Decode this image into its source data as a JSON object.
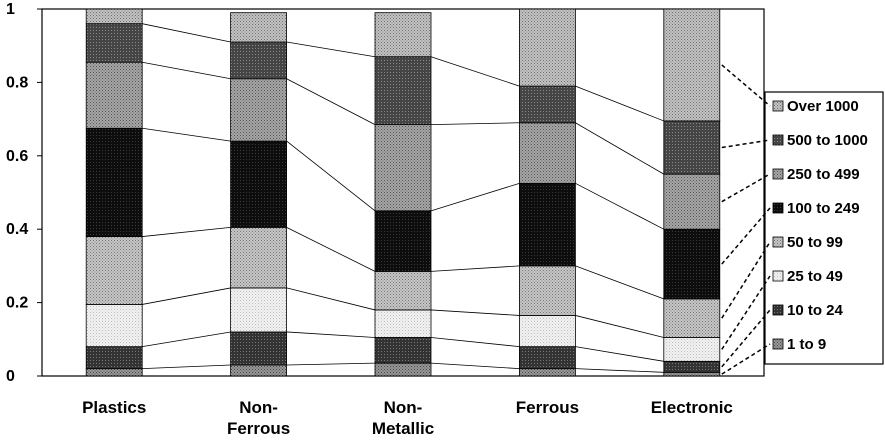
{
  "chart_data": {
    "type": "bar",
    "stacked": true,
    "categories": [
      "Plastics",
      "Non-Ferrous",
      "Non-Metallic",
      "Ferrous",
      "Electronic"
    ],
    "category_lines": [
      [
        "Plastics"
      ],
      [
        "Non-",
        "Ferrous"
      ],
      [
        "Non-",
        "Metallic"
      ],
      [
        "Ferrous"
      ],
      [
        "Electronic"
      ]
    ],
    "ylim": [
      0,
      1
    ],
    "yticks": [
      "0",
      "0.2",
      "0.4",
      "0.6",
      "0.8",
      "1"
    ],
    "grid": false,
    "legend_position": "right",
    "series_connectors": true,
    "series": [
      {
        "name": "1 to 9",
        "color": "#8c8c8c",
        "pattern": "dots-fine",
        "values": [
          0.02,
          0.03,
          0.035,
          0.02,
          0.01
        ]
      },
      {
        "name": "10 to 24",
        "color": "#3a3a3a",
        "pattern": "dots-dark",
        "values": [
          0.06,
          0.09,
          0.07,
          0.06,
          0.03
        ]
      },
      {
        "name": "25 to 49",
        "color": "#e6e6e6",
        "pattern": "dots-light",
        "values": [
          0.115,
          0.12,
          0.075,
          0.085,
          0.065
        ]
      },
      {
        "name": "50 to 99",
        "color": "#b4b4b4",
        "pattern": "dots-mid",
        "values": [
          0.185,
          0.165,
          0.105,
          0.135,
          0.105
        ]
      },
      {
        "name": "100 to 249",
        "color": "#111111",
        "pattern": "dots-black",
        "values": [
          0.295,
          0.235,
          0.165,
          0.225,
          0.19
        ]
      },
      {
        "name": "250 to 499",
        "color": "#9c9c9c",
        "pattern": "dots-grey",
        "values": [
          0.18,
          0.17,
          0.235,
          0.165,
          0.15
        ]
      },
      {
        "name": "500 to 1000",
        "color": "#4a4a4a",
        "pattern": "dots-dark2",
        "values": [
          0.105,
          0.1,
          0.185,
          0.1,
          0.145
        ]
      },
      {
        "name": "Over 1000",
        "color": "#b8b8b8",
        "pattern": "dots-mid2",
        "values": [
          0.04,
          0.08,
          0.12,
          0.21,
          0.305
        ]
      }
    ]
  }
}
